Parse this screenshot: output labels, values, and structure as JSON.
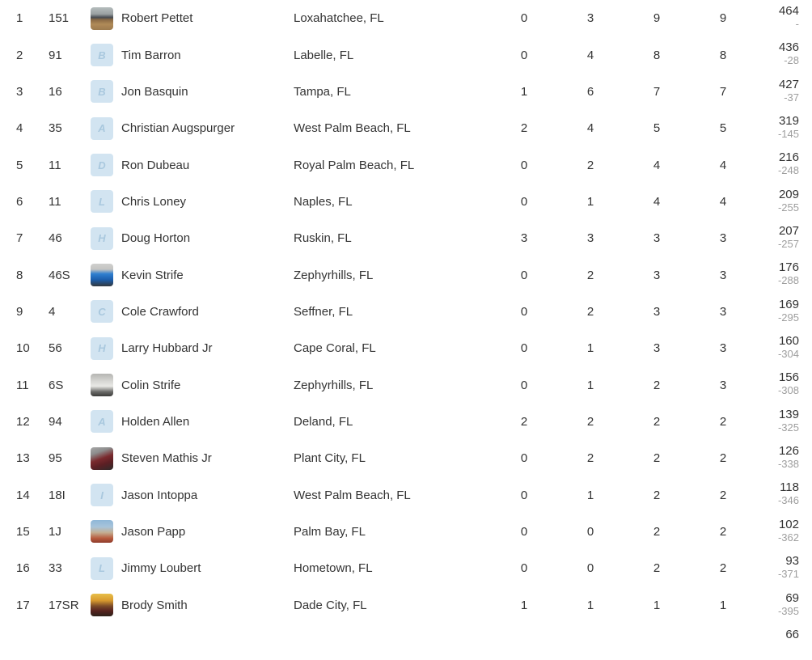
{
  "colors": {
    "text": "#333333",
    "diff_gray": "#9e9e9e",
    "avatar_letter_bg": "#d2e4f1",
    "avatar_letter_fg": "#a9c8de",
    "row_bg": "#ffffff"
  },
  "standings": {
    "rows": [
      {
        "pos": "1",
        "car": "151",
        "avatar": {
          "kind": "photo",
          "key": "pettet",
          "label": "car-on-dirt-track-photo"
        },
        "name": "Robert Pettet",
        "hometown": "Loxahatchee, FL",
        "stats": [
          "0",
          "3",
          "9",
          "9"
        ],
        "points": "464",
        "diff": "-"
      },
      {
        "pos": "2",
        "car": "91",
        "avatar": {
          "kind": "letter",
          "letter": "B"
        },
        "name": "Tim Barron",
        "hometown": "Labelle, FL",
        "stats": [
          "0",
          "4",
          "8",
          "8"
        ],
        "points": "436",
        "diff": "-28"
      },
      {
        "pos": "3",
        "car": "16",
        "avatar": {
          "kind": "letter",
          "letter": "B"
        },
        "name": "Jon Basquin",
        "hometown": "Tampa, FL",
        "stats": [
          "1",
          "6",
          "7",
          "7"
        ],
        "points": "427",
        "diff": "-37"
      },
      {
        "pos": "4",
        "car": "35",
        "avatar": {
          "kind": "letter",
          "letter": "A"
        },
        "name": "Christian Augspurger",
        "hometown": "West Palm Beach, FL",
        "stats": [
          "2",
          "4",
          "5",
          "5"
        ],
        "points": "319",
        "diff": "-145"
      },
      {
        "pos": "5",
        "car": "11",
        "avatar": {
          "kind": "letter",
          "letter": "D"
        },
        "name": "Ron Dubeau",
        "hometown": "Royal Palm Beach, FL",
        "stats": [
          "0",
          "2",
          "4",
          "4"
        ],
        "points": "216",
        "diff": "-248"
      },
      {
        "pos": "6",
        "car": "11",
        "avatar": {
          "kind": "letter",
          "letter": "L"
        },
        "name": "Chris Loney",
        "hometown": "Naples, FL",
        "stats": [
          "0",
          "1",
          "4",
          "4"
        ],
        "points": "209",
        "diff": "-255"
      },
      {
        "pos": "7",
        "car": "46",
        "avatar": {
          "kind": "letter",
          "letter": "H"
        },
        "name": "Doug Horton",
        "hometown": "Ruskin, FL",
        "stats": [
          "3",
          "3",
          "3",
          "3"
        ],
        "points": "207",
        "diff": "-257"
      },
      {
        "pos": "8",
        "car": "46S",
        "avatar": {
          "kind": "photo",
          "key": "kstrife",
          "label": "blue-race-car-photo"
        },
        "name": "Kevin Strife",
        "hometown": "Zephyrhills, FL",
        "stats": [
          "0",
          "2",
          "3",
          "3"
        ],
        "points": "176",
        "diff": "-288"
      },
      {
        "pos": "9",
        "car": "4",
        "avatar": {
          "kind": "letter",
          "letter": "C"
        },
        "name": "Cole Crawford",
        "hometown": "Seffner, FL",
        "stats": [
          "0",
          "2",
          "3",
          "3"
        ],
        "points": "169",
        "diff": "-295"
      },
      {
        "pos": "10",
        "car": "56",
        "avatar": {
          "kind": "letter",
          "letter": "H"
        },
        "name": "Larry Hubbard Jr",
        "hometown": "Cape Coral, FL",
        "stats": [
          "0",
          "1",
          "3",
          "3"
        ],
        "points": "160",
        "diff": "-304"
      },
      {
        "pos": "11",
        "car": "6S",
        "avatar": {
          "kind": "photo",
          "key": "cstrife",
          "label": "white-race-car-photo"
        },
        "name": "Colin Strife",
        "hometown": "Zephyrhills, FL",
        "stats": [
          "0",
          "1",
          "2",
          "3"
        ],
        "points": "156",
        "diff": "-308"
      },
      {
        "pos": "12",
        "car": "94",
        "avatar": {
          "kind": "letter",
          "letter": "A"
        },
        "name": "Holden Allen",
        "hometown": "Deland, FL",
        "stats": [
          "2",
          "2",
          "2",
          "2"
        ],
        "points": "139",
        "diff": "-325"
      },
      {
        "pos": "13",
        "car": "95",
        "avatar": {
          "kind": "photo",
          "key": "mathis",
          "label": "dark-red-race-car-photo"
        },
        "name": "Steven Mathis Jr",
        "hometown": "Plant City, FL",
        "stats": [
          "0",
          "2",
          "2",
          "2"
        ],
        "points": "126",
        "diff": "-338"
      },
      {
        "pos": "14",
        "car": "18I",
        "avatar": {
          "kind": "letter",
          "letter": "I"
        },
        "name": "Jason Intoppa",
        "hometown": "West Palm Beach, FL",
        "stats": [
          "0",
          "1",
          "2",
          "2"
        ],
        "points": "118",
        "diff": "-346"
      },
      {
        "pos": "15",
        "car": "1J",
        "avatar": {
          "kind": "photo",
          "key": "papp",
          "label": "people-by-car-photo"
        },
        "name": "Jason Papp",
        "hometown": "Palm Bay, FL",
        "stats": [
          "0",
          "0",
          "2",
          "2"
        ],
        "points": "102",
        "diff": "-362"
      },
      {
        "pos": "16",
        "car": "33",
        "avatar": {
          "kind": "letter",
          "letter": "L"
        },
        "name": "Jimmy Loubert",
        "hometown": "Hometown, FL",
        "stats": [
          "0",
          "0",
          "2",
          "2"
        ],
        "points": "93",
        "diff": "-371"
      },
      {
        "pos": "17",
        "car": "17SR",
        "avatar": {
          "kind": "photo",
          "key": "smith",
          "label": "race-car-at-dusk-photo"
        },
        "name": "Brody Smith",
        "hometown": "Dade City, FL",
        "stats": [
          "1",
          "1",
          "1",
          "1"
        ],
        "points": "69",
        "diff": "-395"
      }
    ],
    "partial_next_row": {
      "points": "66"
    }
  }
}
